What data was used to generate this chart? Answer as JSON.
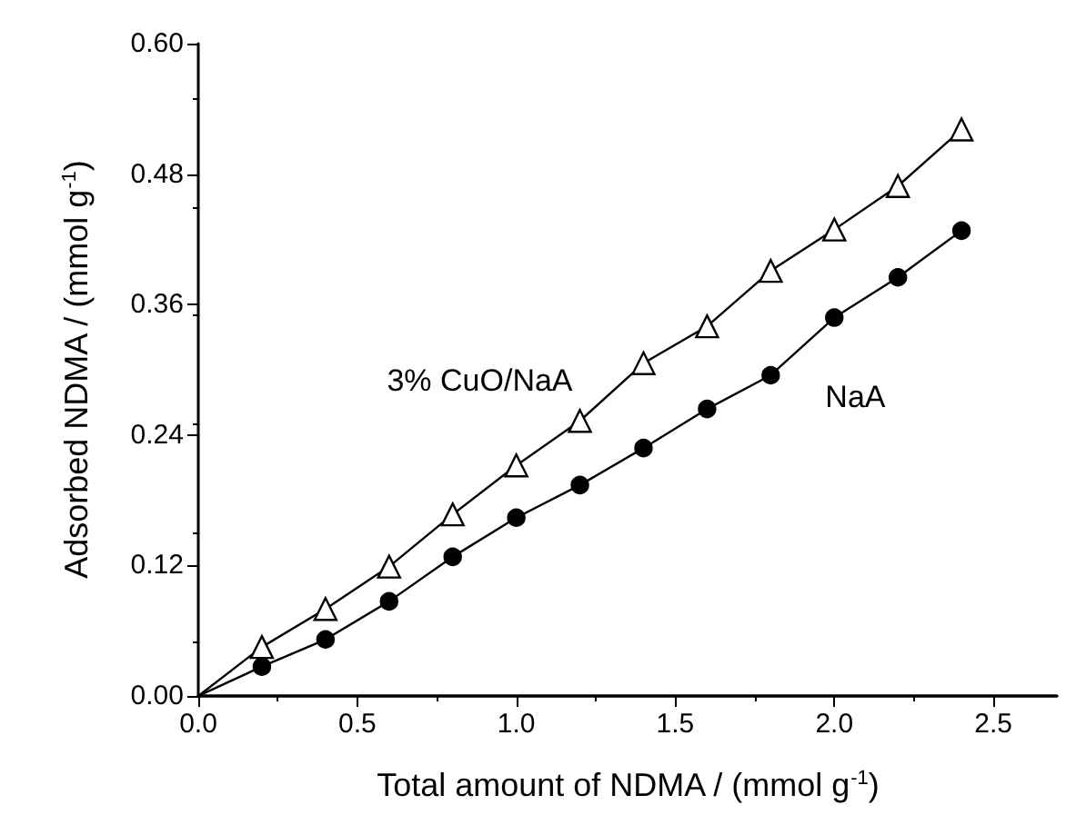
{
  "chart_data": {
    "type": "line",
    "xlabel": "Total amount of NDMA / (mmol g$^{-1}$)",
    "ylabel": "Adsorbed NDMA / (mmol g$^{-1}$)",
    "x": [
      0,
      0.2,
      0.4,
      0.6,
      0.8,
      1.0,
      1.2,
      1.4,
      1.6,
      1.8,
      2.0,
      2.2,
      2.4
    ],
    "series": [
      {
        "name": "3% CuO/NaA",
        "color": "#000000",
        "marker": "triangle",
        "values": [
          0,
          0.045,
          0.08,
          0.119,
          0.167,
          0.212,
          0.253,
          0.306,
          0.34,
          0.391,
          0.429,
          0.469,
          0.521
        ]
      },
      {
        "name": "NaA",
        "color": "#000000",
        "marker": "circle",
        "values": [
          0,
          0.027,
          0.052,
          0.087,
          0.128,
          0.164,
          0.194,
          0.228,
          0.264,
          0.295,
          0.348,
          0.385,
          0.428
        ]
      }
    ],
    "xlim": [
      0,
      2.7
    ],
    "ylim": [
      0,
      0.6
    ],
    "xticks": [
      {
        "value": 0,
        "label": "0.0"
      },
      0.5,
      {
        "value": 1,
        "label": "1.0"
      },
      1.5,
      {
        "value": 2,
        "label": "2.0"
      },
      2.5
    ],
    "yticks": [
      {
        "value": 0,
        "label": "0.00"
      },
      0.12,
      0.24,
      0.36,
      0.48,
      {
        "value": 0.6,
        "label": "0.60"
      }
    ],
    "grid": false,
    "legend": false,
    "line_style": "solid"
  }
}
